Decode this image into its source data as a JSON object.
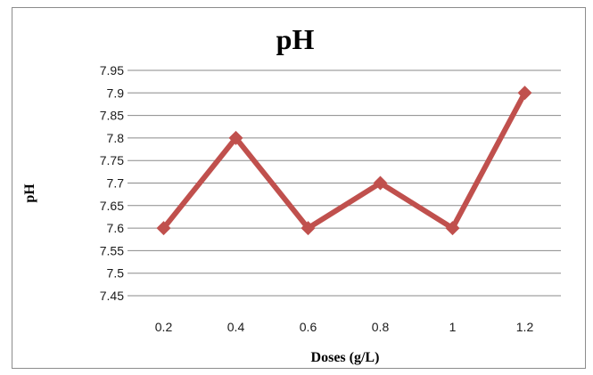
{
  "chart_data": {
    "type": "line",
    "title": "pH",
    "xlabel": "Doses (g/L)",
    "ylabel": "pH",
    "categories": [
      "0.2",
      "0.4",
      "0.6",
      "0.8",
      "1",
      "1.2"
    ],
    "series": [
      {
        "values": [
          7.6,
          7.8,
          7.6,
          7.7,
          7.6,
          7.9
        ]
      }
    ],
    "ylim": [
      7.45,
      7.95
    ],
    "yticks": [
      "7.45",
      "7.5",
      "7.55",
      "7.6",
      "7.65",
      "7.7",
      "7.75",
      "7.8",
      "7.85",
      "7.9",
      "7.95"
    ],
    "grid": "horizontal",
    "legend": "none",
    "colors": {
      "line": "#c0504d",
      "grid": "#8a8a8a",
      "border": "#8c8c8c"
    },
    "marker": "diamond"
  }
}
